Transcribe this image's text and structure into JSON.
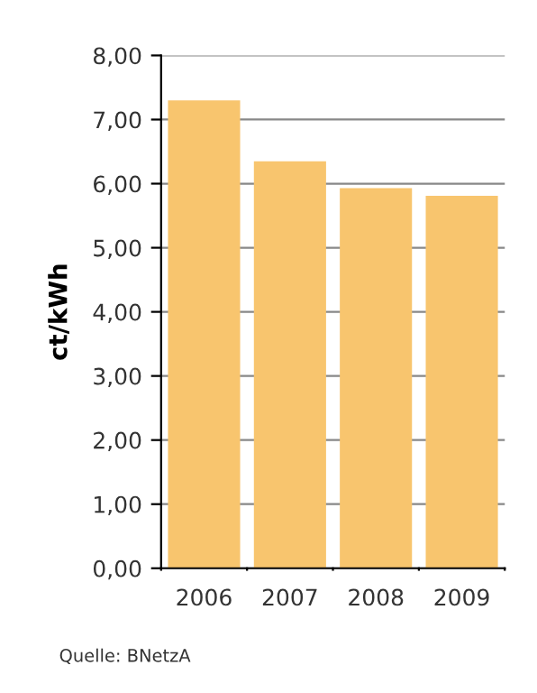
{
  "chart_data": {
    "type": "bar",
    "ylabel": "ct/kWh",
    "categories": [
      "2006",
      "2007",
      "2008",
      "2009"
    ],
    "values": [
      7.3,
      6.35,
      5.93,
      5.81
    ],
    "color": "#f8c56e",
    "ylim": [
      0,
      8
    ],
    "yticks": [
      {
        "value": 0,
        "label": "0,00"
      },
      {
        "value": 1,
        "label": "1,00"
      },
      {
        "value": 2,
        "label": "2,00"
      },
      {
        "value": 3,
        "label": "3,00"
      },
      {
        "value": 4,
        "label": "4,00"
      },
      {
        "value": 5,
        "label": "5,00"
      },
      {
        "value": 6,
        "label": "6,00"
      },
      {
        "value": 7,
        "label": "7,00"
      },
      {
        "value": 8,
        "label": "8,00"
      }
    ],
    "grid": "y",
    "annotations": [
      "Quelle: BNetzA"
    ]
  }
}
